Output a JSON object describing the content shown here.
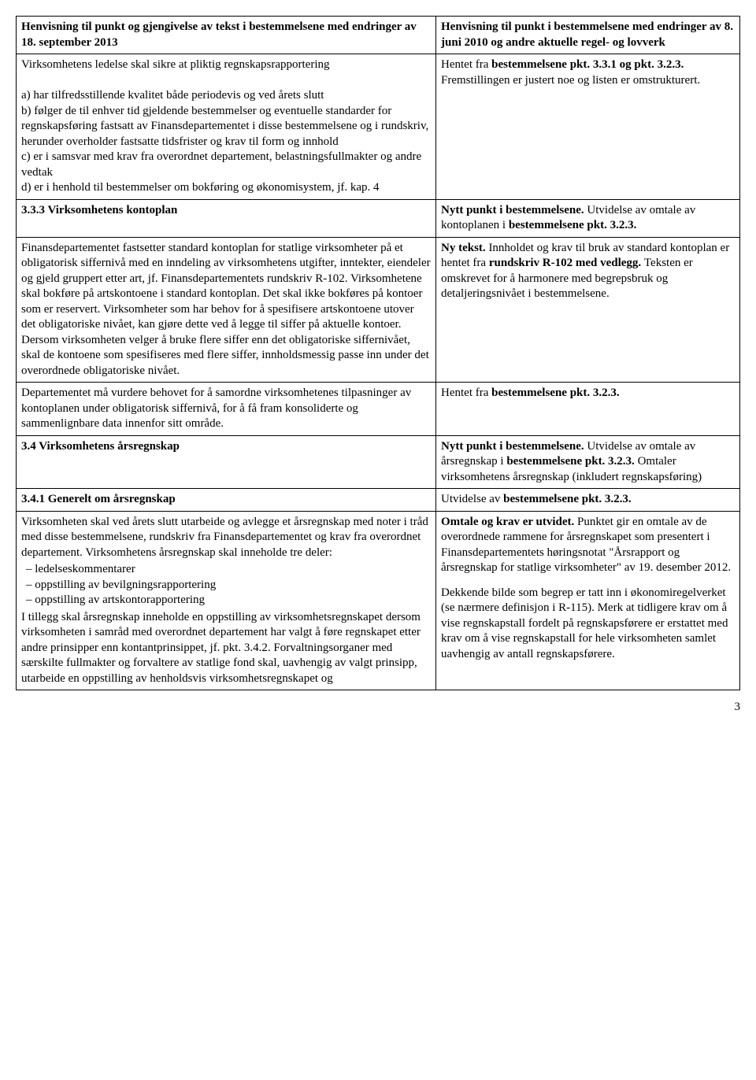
{
  "header": {
    "left": "Henvisning til punkt og gjengivelse av tekst i bestemmelsene med endringer av 18. september 2013",
    "right": "Henvisning til punkt i bestemmelsene med endringer av 8. juni 2010 og andre aktuelle regel- og lovverk"
  },
  "rows": [
    {
      "left_paras": [
        "Virksomhetens ledelse skal sikre at pliktig regnskapsrapportering",
        "",
        "a) har tilfredsstillende kvalitet både periodevis og ved årets slutt",
        "b) følger de til enhver tid gjeldende bestemmelser og eventuelle standarder for regnskapsføring fastsatt av Finansdepartementet i disse bestemmelsene og i rundskriv, herunder overholder fastsatte tidsfrister og krav til form og innhold",
        "c) er i samsvar med krav fra overordnet departement, belastningsfullmakter og andre vedtak",
        "d) er i henhold til bestemmelser om bokføring og økonomisystem, jf. kap. 4"
      ],
      "right_runs": [
        {
          "t": "Hentet fra "
        },
        {
          "t": "bestemmelsene pkt. 3.3.1 og pkt. 3.2.3.",
          "b": true
        },
        {
          "t": "  Fremstillingen er justert noe og listen er omstrukturert."
        }
      ]
    },
    {
      "left_runs": [
        {
          "t": "3.3.3 Virksomhetens kontoplan",
          "b": true
        }
      ],
      "right_runs": [
        {
          "t": "Nytt punkt i bestemmelsene. ",
          "b": true
        },
        {
          "t": "Utvidelse av omtale av kontoplanen i "
        },
        {
          "t": "bestemmelsene pkt. 3.2.3.",
          "b": true
        }
      ]
    },
    {
      "left_paras": [
        "Finansdepartementet fastsetter standard kontoplan for statlige virksomheter på et obligatorisk siffernivå med en inndeling av virksomhetens utgifter, inntekter, eiendeler og gjeld gruppert etter art, jf. Finansdepartementets rundskriv R-102. Virksomhetene skal bokføre på artskontoene i standard kontoplan. Det skal ikke bokføres på kontoer som er reservert. Virksomheter som har behov for å spesifisere artskontoene utover det obligatoriske nivået, kan gjøre dette ved å legge til siffer på aktuelle kontoer. Dersom virksomheten velger å bruke flere siffer enn det obligatoriske siffernivået, skal de kontoene som spesifiseres med flere siffer, innholdsmessig passe inn under det overordnede obligatoriske nivået."
      ],
      "right_runs": [
        {
          "t": "Ny tekst. ",
          "b": true
        },
        {
          "t": "Innholdet og krav til bruk av standard kontoplan er hentet fra "
        },
        {
          "t": "rundskriv R-102 med vedlegg. ",
          "b": true
        },
        {
          "t": "Teksten er omskrevet for å harmonere med begrepsbruk og detaljeringsnivået i bestemmelsene."
        }
      ]
    },
    {
      "left_paras": [
        "Departementet må vurdere behovet for å samordne virksomhetenes tilpasninger av kontoplanen under obligatorisk siffernivå, for å få fram konsoliderte og sammenlignbare data innenfor sitt område."
      ],
      "right_runs": [
        {
          "t": "Hentet fra "
        },
        {
          "t": "bestemmelsene pkt. 3.2.3.",
          "b": true
        }
      ]
    },
    {
      "left_runs": [
        {
          "t": "3.4 Virksomhetens årsregnskap",
          "b": true
        }
      ],
      "right_runs": [
        {
          "t": "Nytt punkt i bestemmelsene. ",
          "b": true
        },
        {
          "t": "Utvidelse av omtale av årsregnskap i "
        },
        {
          "t": "bestemmelsene pkt. 3.2.3. ",
          "b": true
        },
        {
          "t": "Omtaler virksomhetens årsregnskap (inkludert regnskapsføring)"
        }
      ]
    },
    {
      "left_runs": [
        {
          "t": "3.4.1 Generelt om årsregnskap",
          "b": true
        }
      ],
      "right_runs": [
        {
          "t": "Utvidelse av "
        },
        {
          "t": "bestemmelsene pkt. 3.2.3.",
          "b": true
        }
      ]
    },
    {
      "left_intro": "Virksomheten skal ved årets slutt utarbeide og avlegge et årsregnskap med noter i tråd med disse bestemmelsene, rundskriv fra Finansdepartementet og krav fra overordnet departement. Virksomhetens årsregnskap skal inneholde tre deler:",
      "left_list": [
        "ledelseskommentarer",
        "oppstilling av bevilgningsrapportering",
        "oppstilling av artskontorapportering"
      ],
      "left_outro": "I tillegg skal årsregnskap inneholde en oppstilling av virksomhetsregnskapet dersom virksomheten i samråd med overordnet departement har valgt å føre regnskapet etter andre prinsipper enn kontantprinsippet, jf. pkt. 3.4.2. Forvaltningsorganer med særskilte fullmakter og forvaltere av statlige fond skal, uavhengig av valgt prinsipp, utarbeide en oppstilling av henholdsvis virksomhetsregnskapet og",
      "right_runs_multi": [
        [
          {
            "t": "Omtale og krav er utvidet. ",
            "b": true
          },
          {
            "t": "Punktet gir en omtale av de overordnede rammene for årsregnskapet som presentert i Finansdepartementets høringsnotat \"Årsrapport og årsregnskap for statlige virksomheter\" av 19. desember 2012."
          }
        ],
        [
          {
            "t": "Dekkende bilde som begrep er tatt inn i økonomiregelverket (se nærmere definisjon i R-115). Merk at tidligere krav om å vise regnskapstall fordelt på regnskapsførere er erstattet med krav om å vise regnskapstall for hele virksomheten samlet uavhengig av antall regnskapsførere."
          }
        ]
      ]
    }
  ],
  "page_number": "3"
}
